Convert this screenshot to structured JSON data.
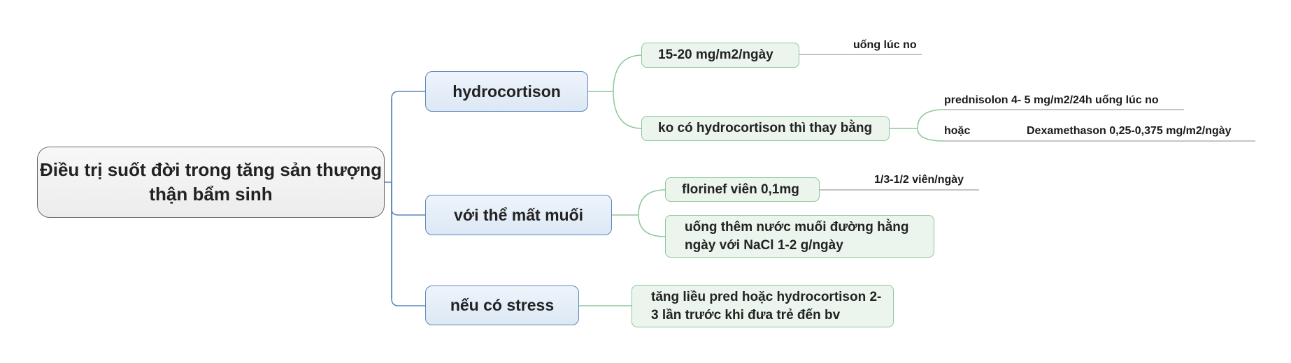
{
  "root": {
    "title": "Điều trị suốt đời trong tăng sản thượng thận bẩm sinh"
  },
  "branches": {
    "hydrocortison": {
      "label": "hydrocortison",
      "dose": "15-20 mg/m2/ngày",
      "dose_note": "uống lúc no",
      "alt": "ko có hydrocortison thì thay bằng",
      "alt_option1": "prednisolon 4- 5 mg/m2/24h uống lúc no",
      "alt_connector": "hoặc",
      "alt_option2": "Dexamethason 0,25-0,375 mg/m2/ngày"
    },
    "salt_wasting": {
      "label": "với thể mất muối",
      "florinef": "florinef viên 0,1mg",
      "florinef_dose": "1/3-1/2 viên/ngày",
      "salt": "uống thêm nước muối đường hằng ngày với NaCl 1-2 g/ngày"
    },
    "stress": {
      "label": "nếu có stress",
      "action": "tăng liều pred hoặc hydrocortison 2-3 lần trước khi đưa trẻ đến bv"
    }
  },
  "colors": {
    "main_connector": "#5b85b8",
    "sub_connector": "#8cc79a",
    "label_underline": "#8a8a8a"
  }
}
